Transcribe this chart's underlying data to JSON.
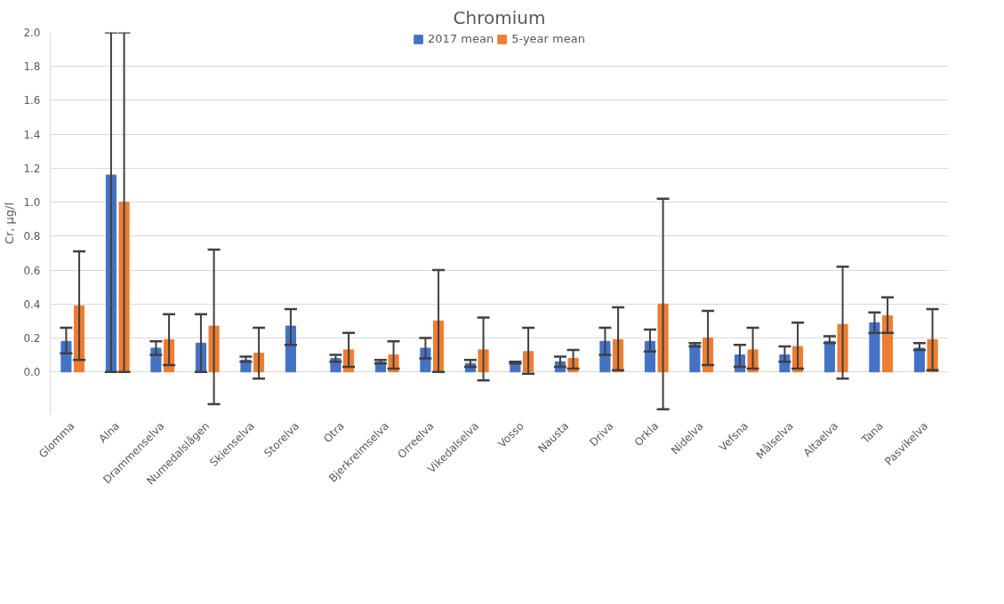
{
  "chart_data": {
    "type": "bar",
    "title": "Chromium",
    "ylabel": "Cr, µg/l",
    "categories": [
      "Glomma",
      "Alna",
      "Drammenselva",
      "Numedalslågen",
      "Skienselva",
      "Storelva",
      "Otra",
      "Bjerkreimselva",
      "Orreelva",
      "Vikedalselva",
      "Vosso",
      "Nausta",
      "Driva",
      "Orkla",
      "Nidelva",
      "Vefsna",
      "Målselva",
      "Altaelva",
      "Tana",
      "Pasvikelva"
    ],
    "series": [
      {
        "name": "2017 mean",
        "color": "#4472c4",
        "values": [
          0.18,
          1.16,
          0.14,
          0.17,
          0.07,
          0.27,
          0.08,
          0.06,
          0.14,
          0.05,
          0.06,
          0.06,
          0.18,
          0.18,
          0.16,
          0.1,
          0.1,
          0.18,
          0.29,
          0.14
        ],
        "errors": [
          [
            0.11,
            0.26
          ],
          [
            0.0,
            2.0
          ],
          [
            0.1,
            0.18
          ],
          [
            0.0,
            0.34
          ],
          [
            0.06,
            0.09
          ],
          [
            0.16,
            0.37
          ],
          [
            0.06,
            0.1
          ],
          [
            0.05,
            0.07
          ],
          [
            0.08,
            0.2
          ],
          [
            0.03,
            0.07
          ],
          [
            0.05,
            0.06
          ],
          [
            0.03,
            0.09
          ],
          [
            0.1,
            0.26
          ],
          [
            0.12,
            0.25
          ],
          [
            0.15,
            0.17
          ],
          [
            0.03,
            0.16
          ],
          [
            0.06,
            0.15
          ],
          [
            0.17,
            0.21
          ],
          [
            0.23,
            0.35
          ],
          [
            0.13,
            0.17
          ]
        ]
      },
      {
        "name": "5-year mean",
        "color": "#ed7d31",
        "values": [
          0.39,
          1.0,
          0.19,
          0.27,
          0.11,
          null,
          0.13,
          0.1,
          0.3,
          0.13,
          0.12,
          0.08,
          0.19,
          0.4,
          0.2,
          0.13,
          0.15,
          0.28,
          0.33,
          0.19
        ],
        "errors": [
          [
            0.07,
            0.71
          ],
          [
            0.0,
            2.0
          ],
          [
            0.04,
            0.34
          ],
          [
            -0.19,
            0.72
          ],
          [
            -0.04,
            0.26
          ],
          null,
          [
            0.03,
            0.23
          ],
          [
            0.02,
            0.18
          ],
          [
            0.0,
            0.6
          ],
          [
            -0.05,
            0.32
          ],
          [
            -0.01,
            0.26
          ],
          [
            0.02,
            0.13
          ],
          [
            0.01,
            0.38
          ],
          [
            -0.22,
            1.02
          ],
          [
            0.04,
            0.36
          ],
          [
            0.02,
            0.26
          ],
          [
            0.02,
            0.29
          ],
          [
            -0.04,
            0.62
          ],
          [
            0.23,
            0.44
          ],
          [
            0.01,
            0.37
          ]
        ]
      }
    ],
    "ylim": [
      -0.25,
      2.0
    ],
    "yticks": [
      {
        "value": 0,
        "label": "0.0"
      },
      {
        "value": 0.2,
        "label": "0.2"
      },
      {
        "value": 0.4,
        "label": "0.4"
      },
      {
        "value": 0.6,
        "label": "0.6"
      },
      {
        "value": 0.8,
        "label": "0.8"
      },
      {
        "value": 1.0,
        "label": "1.0"
      },
      {
        "value": 1.2,
        "label": "1.2"
      },
      {
        "value": 1.4,
        "label": "1.4"
      },
      {
        "value": 1.6,
        "label": "1.6"
      },
      {
        "value": 1.8,
        "label": "1.8"
      },
      {
        "value": 2.0,
        "label": "2.0"
      }
    ],
    "grid": "y",
    "legend": "top"
  }
}
